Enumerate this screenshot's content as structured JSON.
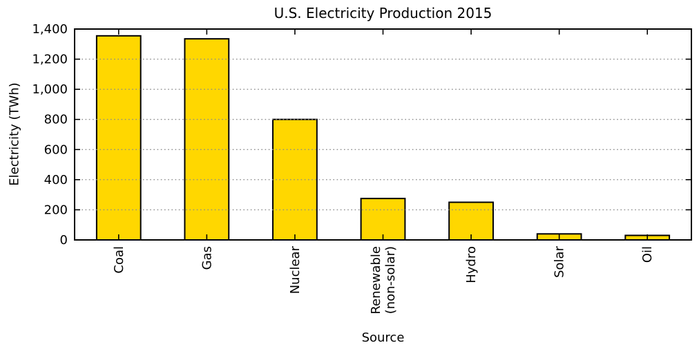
{
  "page": {
    "background": "#ffffff"
  },
  "chart_data": {
    "type": "bar",
    "title": "U.S. Electricity Production 2015",
    "xlabel": "Source",
    "ylabel": "Electricity (TWh)",
    "categories": [
      "Coal",
      "Gas",
      "Nuclear",
      "Renewable\n(non-solar)",
      "Hydro",
      "Solar",
      "Oil"
    ],
    "values": [
      1355,
      1335,
      800,
      275,
      250,
      40,
      30
    ],
    "ylim": [
      0,
      1400
    ],
    "ytick_step": 200,
    "ytick_labels": [
      "0",
      "200",
      "400",
      "600",
      "800",
      "1,000",
      "1,200",
      "1,400"
    ],
    "grid": "horizontal-dotted",
    "legend": "none",
    "bar_width_fraction": 0.5,
    "colors": {
      "bar_fill": "#FFD700",
      "bar_edge": "#000000",
      "grid_line": "#8c8c8c",
      "axis_line": "#000000",
      "text": "#000000"
    }
  }
}
